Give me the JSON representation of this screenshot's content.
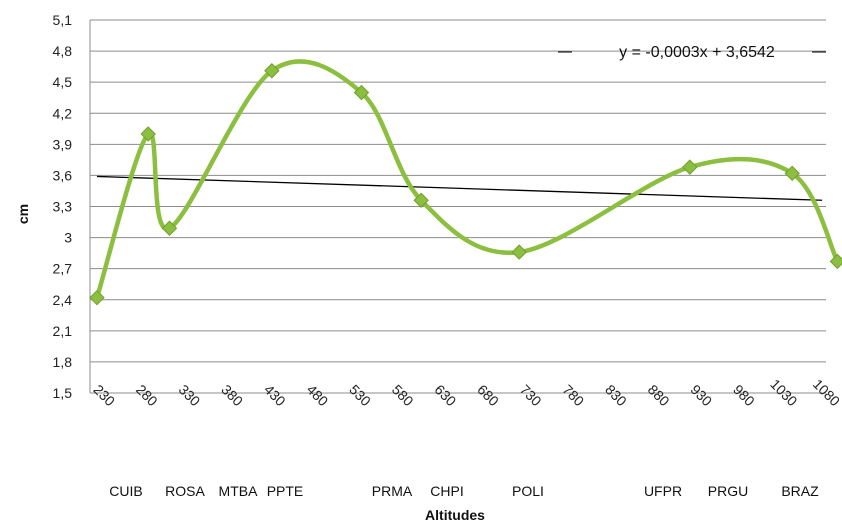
{
  "chart_data": {
    "type": "line",
    "xlabel": "Altitudes",
    "ylabel": "cm",
    "xlim": [
      230,
      1080
    ],
    "ylim": [
      1.5,
      5.1
    ],
    "x_ticks": [
      "230",
      "280",
      "330",
      "380",
      "430",
      "480",
      "530",
      "580",
      "630",
      "680",
      "730",
      "780",
      "830",
      "880",
      "930",
      "980",
      "1030",
      "1080"
    ],
    "y_ticks": [
      "1,5",
      "1,8",
      "2,1",
      "2,4",
      "2,7",
      "3",
      "3,3",
      "3,6",
      "3,9",
      "4,2",
      "4,5",
      "4,8",
      "5,1"
    ],
    "grid": true,
    "legend": "none",
    "series": [
      {
        "color": "#8cbf3f",
        "smooth": true,
        "marker": "diamond",
        "points": [
          {
            "x": 230,
            "y": 2.42
          },
          {
            "x": 290,
            "y": 4.0
          },
          {
            "x": 315,
            "y": 3.09
          },
          {
            "x": 435,
            "y": 4.61
          },
          {
            "x": 540,
            "y": 4.4
          },
          {
            "x": 610,
            "y": 3.36
          },
          {
            "x": 725,
            "y": 2.86
          },
          {
            "x": 925,
            "y": 3.68
          },
          {
            "x": 1045,
            "y": 3.62
          },
          {
            "x": 1098,
            "y": 2.77
          }
        ]
      }
    ],
    "trendline": {
      "color": "#000000",
      "x": [
        230,
        1080
      ],
      "y": [
        3.59,
        3.36
      ],
      "equation": "y = -0,0003x + 3,6542"
    },
    "site_labels": [
      "CUIB",
      "ROSA",
      "MTBA",
      "PPTE",
      "PRMA",
      "CHPI",
      "POLI",
      "UFPR",
      "PRGU",
      "BRAZ"
    ]
  }
}
